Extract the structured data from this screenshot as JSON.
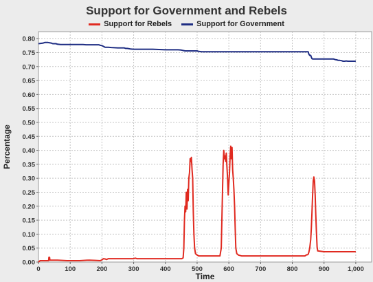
{
  "chart_data": {
    "type": "line",
    "title": "Support for Government and Rebels",
    "xlabel": "Time",
    "ylabel": "Percentage",
    "xlim": [
      0,
      1050
    ],
    "ylim": [
      0.0,
      0.825
    ],
    "x_ticks": [
      0,
      100,
      200,
      300,
      400,
      500,
      600,
      700,
      800,
      900,
      1000
    ],
    "x_tick_labels": [
      "0",
      "100",
      "200",
      "300",
      "400",
      "500",
      "600",
      "700",
      "800",
      "900",
      "1,000"
    ],
    "y_ticks": [
      0.0,
      0.05,
      0.1,
      0.15,
      0.2,
      0.25,
      0.3,
      0.35,
      0.4,
      0.45,
      0.5,
      0.55,
      0.6,
      0.65,
      0.7,
      0.75,
      0.8
    ],
    "y_tick_labels": [
      "0.00",
      "0.05",
      "0.10",
      "0.15",
      "0.20",
      "0.25",
      "0.30",
      "0.35",
      "0.40",
      "0.45",
      "0.50",
      "0.55",
      "0.60",
      "0.65",
      "0.70",
      "0.75",
      "0.80"
    ],
    "grid": true,
    "legend_position": "top-center",
    "series": [
      {
        "name": "Support for Rebels",
        "color": "#e02a20",
        "x": [
          0,
          5,
          25,
          32,
          33,
          35,
          36,
          40,
          60,
          90,
          130,
          160,
          180,
          195,
          200,
          205,
          210,
          215,
          220,
          260,
          300,
          305,
          310,
          350,
          400,
          440,
          452,
          456,
          458,
          460,
          462,
          464,
          466,
          468,
          470,
          472,
          474,
          476,
          478,
          480,
          482,
          484,
          486,
          488,
          490,
          492,
          495,
          500,
          505,
          510,
          560,
          572,
          576,
          578,
          580,
          582,
          584,
          586,
          588,
          590,
          592,
          594,
          596,
          598,
          600,
          602,
          604,
          606,
          608,
          610,
          612,
          614,
          616,
          618,
          620,
          622,
          625,
          630,
          640,
          700,
          800,
          840,
          845,
          848,
          850,
          852,
          855,
          858,
          860,
          862,
          864,
          866,
          868,
          870,
          872,
          874,
          876,
          878,
          880,
          900,
          1000
        ],
        "y": [
          0.0,
          0.005,
          0.005,
          0.005,
          0.017,
          0.017,
          0.007,
          0.007,
          0.007,
          0.005,
          0.005,
          0.007,
          0.006,
          0.005,
          0.008,
          0.012,
          0.011,
          0.009,
          0.012,
          0.012,
          0.012,
          0.014,
          0.012,
          0.012,
          0.012,
          0.012,
          0.012,
          0.015,
          0.05,
          0.15,
          0.2,
          0.18,
          0.25,
          0.19,
          0.26,
          0.22,
          0.3,
          0.32,
          0.37,
          0.36,
          0.375,
          0.33,
          0.3,
          0.18,
          0.1,
          0.05,
          0.03,
          0.025,
          0.022,
          0.022,
          0.022,
          0.022,
          0.05,
          0.15,
          0.25,
          0.35,
          0.4,
          0.37,
          0.38,
          0.36,
          0.39,
          0.34,
          0.3,
          0.24,
          0.28,
          0.32,
          0.38,
          0.415,
          0.37,
          0.41,
          0.33,
          0.3,
          0.26,
          0.2,
          0.12,
          0.05,
          0.03,
          0.025,
          0.022,
          0.022,
          0.022,
          0.022,
          0.026,
          0.026,
          0.028,
          0.034,
          0.05,
          0.08,
          0.12,
          0.18,
          0.24,
          0.29,
          0.305,
          0.29,
          0.24,
          0.17,
          0.11,
          0.055,
          0.04,
          0.037,
          0.037
        ]
      },
      {
        "name": "Support for Government",
        "color": "#1e2d83",
        "x": [
          0,
          15,
          20,
          30,
          40,
          45,
          55,
          60,
          70,
          80,
          140,
          150,
          190,
          195,
          200,
          205,
          210,
          220,
          230,
          250,
          270,
          275,
          280,
          290,
          300,
          310,
          330,
          360,
          400,
          440,
          450,
          458,
          462,
          500,
          505,
          515,
          600,
          700,
          800,
          840,
          850,
          852,
          855,
          858,
          860,
          862,
          865,
          870,
          900,
          930,
          935,
          940,
          945,
          950,
          955,
          960,
          965,
          970,
          975,
          1000
        ],
        "y": [
          0.782,
          0.784,
          0.786,
          0.786,
          0.784,
          0.782,
          0.782,
          0.78,
          0.779,
          0.779,
          0.779,
          0.778,
          0.778,
          0.776,
          0.775,
          0.772,
          0.769,
          0.769,
          0.768,
          0.767,
          0.767,
          0.765,
          0.765,
          0.763,
          0.762,
          0.762,
          0.762,
          0.762,
          0.76,
          0.76,
          0.759,
          0.757,
          0.756,
          0.756,
          0.754,
          0.753,
          0.753,
          0.753,
          0.753,
          0.753,
          0.753,
          0.745,
          0.74,
          0.74,
          0.734,
          0.728,
          0.727,
          0.727,
          0.727,
          0.727,
          0.725,
          0.724,
          0.722,
          0.722,
          0.721,
          0.719,
          0.719,
          0.72,
          0.719,
          0.719
        ]
      }
    ]
  }
}
